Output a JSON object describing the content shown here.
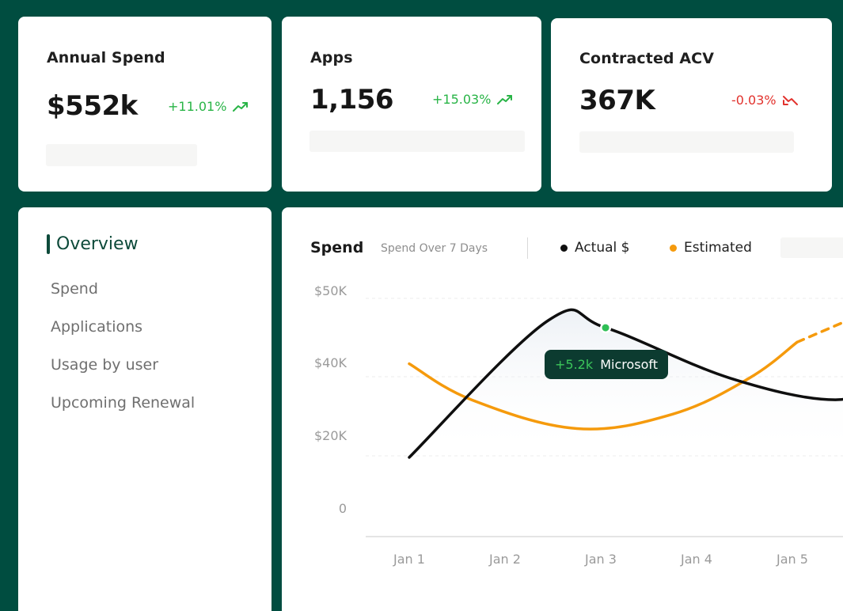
{
  "colors": {
    "background": "#004d40",
    "positive": "#28b446",
    "negative": "#e2322d",
    "actual_line": "#0f0f0f",
    "estimated_line": "#f59a0c",
    "tooltip_bg": "#0c3b30",
    "active_nav": "#0d4a3a"
  },
  "kpis": [
    {
      "title": "Annual Spend",
      "value": "$552k",
      "delta": "+11.01%",
      "trend": "up",
      "trend_icon": "trend-up-icon"
    },
    {
      "title": "Apps",
      "value": "1,156",
      "delta": "+15.03%",
      "trend": "up",
      "trend_icon": "trend-up-icon"
    },
    {
      "title": "Contracted ACV",
      "value": "367K",
      "delta": "-0.03%",
      "trend": "down",
      "trend_icon": "trend-down-icon"
    }
  ],
  "nav": {
    "active": "Overview",
    "items": [
      "Spend",
      "Applications",
      "Usage by user",
      "Upcoming Renewal"
    ]
  },
  "chart": {
    "title": "Spend",
    "subtitle": "Spend Over 7 Days",
    "legend": [
      {
        "label": "Actual $",
        "color": "#0f0f0f"
      },
      {
        "label": "Estimated",
        "color": "#f59a0c"
      }
    ],
    "tooltip": {
      "delta": "+5.2k",
      "label": "Microsoft"
    }
  },
  "chart_data": {
    "type": "line",
    "title": "Spend",
    "subtitle": "Spend Over 7 Days",
    "categories": [
      "Jan 1",
      "Jan 2",
      "Jan 3",
      "Jan 4",
      "Jan 5"
    ],
    "y_ticks": [
      "$50K",
      "$40K",
      "$20K",
      "0"
    ],
    "grid": true,
    "legend_position": "top",
    "series": [
      {
        "name": "Actual $",
        "points": [
          {
            "x": 0.0,
            "y": 11
          },
          {
            "x": 1.45,
            "y": 30
          },
          {
            "x": 2.05,
            "y": 29
          },
          {
            "x": 3.35,
            "y": 22
          },
          {
            "x": 4.45,
            "y": 19
          },
          {
            "x": 5.0,
            "y": 22
          }
        ]
      },
      {
        "name": "Estimated",
        "points": [
          {
            "x": 0.0,
            "y": 24
          },
          {
            "x": 0.65,
            "y": 19
          },
          {
            "x": 1.75,
            "y": 15
          },
          {
            "x": 2.75,
            "y": 17
          },
          {
            "x": 3.55,
            "y": 22
          },
          {
            "x": 4.05,
            "y": 27
          }
        ],
        "projected_points": [
          {
            "x": 4.05,
            "y": 27
          },
          {
            "x": 4.75,
            "y": 31
          }
        ]
      }
    ],
    "highlight": {
      "series": "Actual $",
      "x": 2.05,
      "y": 29,
      "label": "Microsoft",
      "delta": "+5.2k"
    }
  }
}
